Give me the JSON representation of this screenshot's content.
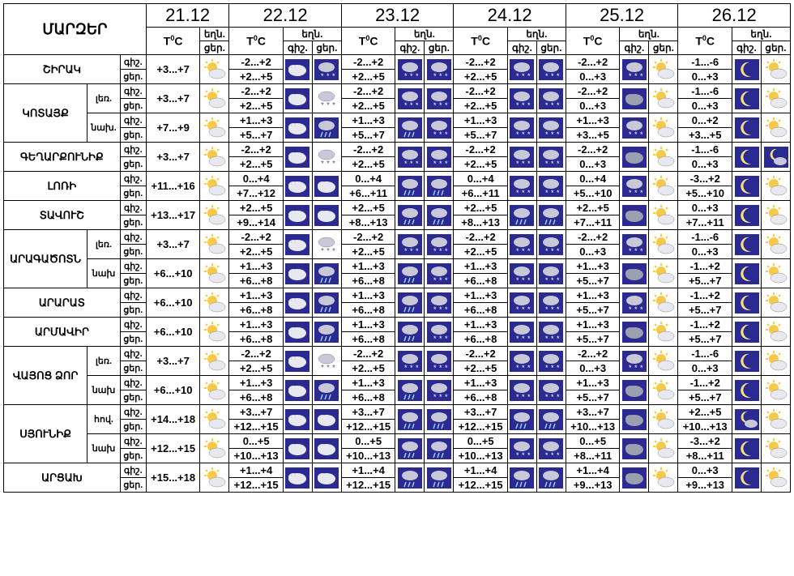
{
  "header": {
    "region_title": "ՄԱՐԶԵՐ"
  },
  "labels": {
    "tc": "T⁰C",
    "wx": "եղն.",
    "night": "գիշ.",
    "day": "ցեր."
  },
  "dates": [
    "21.12",
    "22.12",
    "23.12",
    "24.12",
    "25.12",
    "26.12"
  ],
  "icons": {
    "sun_cloud": "sc",
    "cloud": "cl",
    "snow_night": "sn",
    "snow": "snw",
    "dark_cloud": "dc",
    "moon": "mn",
    "moon_cloud": "mc",
    "rain_cloud": "rc"
  },
  "rows": [
    {
      "region": "ՇԻՐԱԿ",
      "span": 1,
      "sub": [
        {
          "zone": "",
          "temps": [
            "+3...+7",
            "-2...+2 / +2...+5",
            "-2...+2 / +2...+5",
            "-2...+2 / +2...+5",
            "-2...+2 / 0...+3",
            "-1...-6 / 0...+3"
          ],
          "icons": [
            "sc",
            "cl|sn",
            "sn|sn",
            "sn|sn",
            "sn|sc",
            "mn|sc"
          ]
        }
      ]
    },
    {
      "region": "ԿՈՏԱՅՔ",
      "span": 2,
      "sub": [
        {
          "zone": "լեռ.",
          "temps": [
            "+3...+7",
            "-2...+2 / +2...+5",
            "-2...+2 / +2...+5",
            "-2...+2 / +2...+5",
            "-2...+2 / 0...+3",
            "-1...-6 / 0...+3"
          ],
          "icons": [
            "sc",
            "cl|snw",
            "sn|sn",
            "sn|sn",
            "dc|sc",
            "mn|sc"
          ]
        },
        {
          "zone": "նախ.",
          "temps": [
            "+7...+9",
            "+1...+3 / +5...+7",
            "+1...+3 / +5...+7",
            "+1...+3 / +5...+7",
            "+1...+3 / +3...+5",
            "0...+2 / +3...+5"
          ],
          "icons": [
            "sc",
            "cl|rc",
            "rc|sn",
            "sn|sn",
            "sn|sc",
            "mn|sc"
          ]
        }
      ]
    },
    {
      "region": "ԳԵՂԱՐՔՈՒՆԻՔ",
      "span": 1,
      "sub": [
        {
          "zone": "",
          "temps": [
            "+3...+7",
            "-2...+2 / +2...+5",
            "-2...+2 / +2...+5",
            "-2...+2 / +2...+5",
            "-2...+2 / 0...+3",
            "-1...-6 / 0...+3"
          ],
          "icons": [
            "sc",
            "cl|snw",
            "sn|sn",
            "sn|sn",
            "dc|sc",
            "mn|mc"
          ]
        }
      ]
    },
    {
      "region": "ԼՈՌԻ",
      "span": 1,
      "sub": [
        {
          "zone": "",
          "temps": [
            "+11...+16",
            "0...+4 / +7...+12",
            "0...+4 / +6...+11",
            "0...+4 / +6...+11",
            "0...+4 / +5...+10",
            "-3...+2 / +5...+10"
          ],
          "icons": [
            "sc",
            "cl|cl",
            "rc|rc",
            "sn|sn",
            "sn|sc",
            "mn|sc"
          ]
        }
      ]
    },
    {
      "region": "ՏԱՎՈՒՇ",
      "span": 1,
      "sub": [
        {
          "zone": "",
          "temps": [
            "+13...+17",
            "+2...+5 / +9...+14",
            "+2...+5 / +8...+13",
            "+2...+5 / +8...+13",
            "+2...+5 / +7...+11",
            "0...+3 / +7...+11"
          ],
          "icons": [
            "sc",
            "cl|cl",
            "rc|rc",
            "rc|rc",
            "dc|sc",
            "mn|sc"
          ]
        }
      ]
    },
    {
      "region": "ԱՐԱԳԱԾՈՏՆ",
      "span": 2,
      "sub": [
        {
          "zone": "լեռ.",
          "temps": [
            "+3...+7",
            "-2...+2 / +2...+5",
            "-2...+2 / +2...+5",
            "-2...+2 / +2...+5",
            "-2...+2 / 0...+3",
            "-1...-6 / 0...+3"
          ],
          "icons": [
            "sc",
            "cl|snw",
            "sn|sn",
            "sn|sn",
            "sn|sc",
            "mn|sc"
          ]
        },
        {
          "zone": "նախ",
          "temps": [
            "+6...+10",
            "+1...+3 / +6...+8",
            "+1...+3 / +6...+8",
            "+1...+3 / +6...+8",
            "+1...+3 / +5...+7",
            "-1...+2 / +5...+7"
          ],
          "icons": [
            "sc",
            "cl|rc",
            "rc|sn",
            "sn|sn",
            "dc|sc",
            "mn|sc"
          ]
        }
      ]
    },
    {
      "region": "ԱՐԱՐԱՏ",
      "span": 1,
      "sub": [
        {
          "zone": "",
          "temps": [
            "+6...+10",
            "+1...+3 / +6...+8",
            "+1...+3 / +6...+8",
            "+1...+3 / +6...+8",
            "+1...+3 / +5...+7",
            "-1...+2 / +5...+7"
          ],
          "icons": [
            "sc",
            "cl|rc",
            "rc|sn",
            "sn|sn",
            "sn|sc",
            "mn|sc"
          ]
        }
      ]
    },
    {
      "region": "ԱՐՄԱՎԻՐ",
      "span": 1,
      "sub": [
        {
          "zone": "",
          "temps": [
            "+6...+10",
            "+1...+3 / +6...+8",
            "+1...+3 / +6...+8",
            "+1...+3 / +6...+8",
            "+1...+3 / +5...+7",
            "-1...+2 / +5...+7"
          ],
          "icons": [
            "sc",
            "cl|rc",
            "rc|sn",
            "sn|sn",
            "dc|sc",
            "mn|sc"
          ]
        }
      ]
    },
    {
      "region": "ՎԱՅՈՑ ՁՈՐ",
      "span": 2,
      "sub": [
        {
          "zone": "լեռ.",
          "temps": [
            "+3...+7",
            "-2...+2 / +2...+5",
            "-2...+2 / +2...+5",
            "-2...+2 / +2...+5",
            "-2...+2 / 0...+3",
            "-1...-6 / 0...+3"
          ],
          "icons": [
            "sc",
            "cl|snw",
            "sn|sn",
            "sn|sn",
            "sn|sc",
            "mn|sc"
          ]
        },
        {
          "zone": "նախ",
          "temps": [
            "+6...+10",
            "+1...+3 / +6...+8",
            "+1...+3 / +6...+8",
            "+1...+3 / +6...+8",
            "+1...+3 / +5...+7",
            "-1...+2 / +5...+7"
          ],
          "icons": [
            "sc",
            "cl|rc",
            "rc|sn",
            "sn|sn",
            "dc|sc",
            "mn|sc"
          ]
        }
      ]
    },
    {
      "region": "ՍՅՈՒՆԻՔ",
      "span": 2,
      "sub": [
        {
          "zone": "հով.",
          "temps": [
            "+14...+18",
            "+3...+7 / +12...+15",
            "+3...+7 / +12...+15",
            "+3...+7 / +12...+15",
            "+3...+7 / +10...+13",
            "+2...+5 / +10...+13"
          ],
          "icons": [
            "sc",
            "cl|cl",
            "rc|rc",
            "rc|rc",
            "dc|sc",
            "mc|sc"
          ]
        },
        {
          "zone": "նախ",
          "temps": [
            "+12...+15",
            "0...+5 / +10...+13",
            "0...+5 / +10...+13",
            "0...+5 / +10...+13",
            "0...+5 / +8...+11",
            "-3...+2 / +8...+11"
          ],
          "icons": [
            "sc",
            "cl|cl",
            "rc|rc",
            "sn|sn",
            "dc|sc",
            "mn|sc"
          ]
        }
      ]
    },
    {
      "region": "ԱՐՑԱԽ",
      "span": 1,
      "sub": [
        {
          "zone": "",
          "temps": [
            "+15...+18",
            "+1...+4 / +12...+15",
            "+1...+4 / +12...+15",
            "+1...+4 / +12...+15",
            "+1...+4 / +9...+13",
            "0...+3 / +9...+13"
          ],
          "icons": [
            "sc",
            "cl|cl",
            "rc|rc",
            "rc|rc",
            "dc|sc",
            "mn|sc"
          ]
        }
      ]
    }
  ],
  "style": {
    "night_bg": "#2a2a90",
    "sun": "#f7c948",
    "cloud": "#e8e8f0",
    "cloud_dark": "#9aa0b0",
    "moon": "#f7e07a"
  }
}
